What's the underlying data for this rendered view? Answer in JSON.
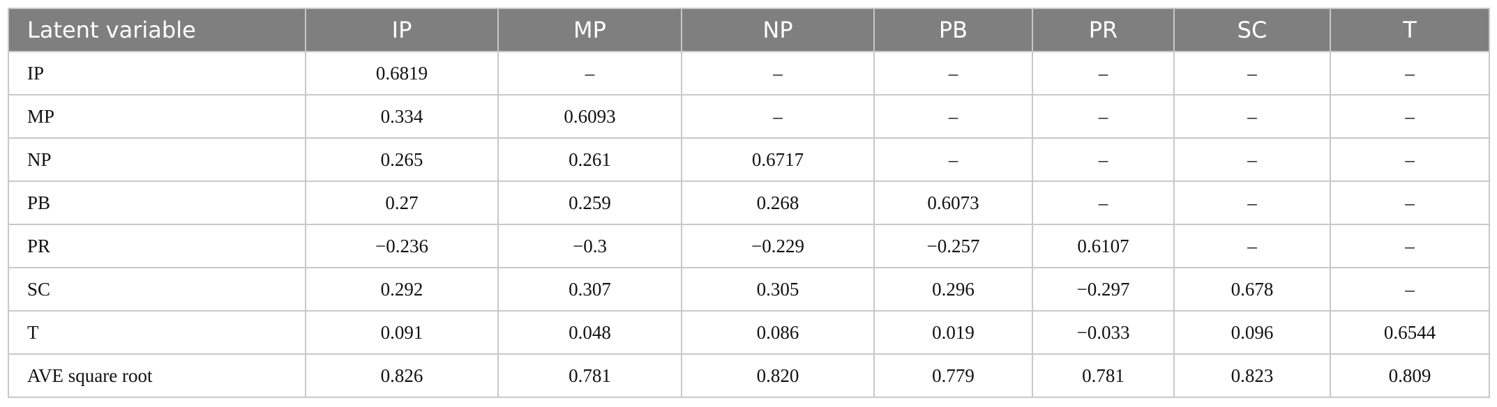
{
  "table": {
    "header": [
      "Latent variable",
      "IP",
      "MP",
      "NP",
      "PB",
      "PR",
      "SC",
      "T"
    ],
    "rows": [
      [
        "IP",
        "0.6819",
        "–",
        "–",
        "–",
        "–",
        "–",
        "–"
      ],
      [
        "MP",
        "0.334",
        "0.6093",
        "–",
        "–",
        "–",
        "–",
        "–"
      ],
      [
        "NP",
        "0.265",
        "0.261",
        "0.6717",
        "–",
        "–",
        "–",
        "–"
      ],
      [
        "PB",
        "0.27",
        "0.259",
        "0.268",
        "0.6073",
        "–",
        "–",
        "–"
      ],
      [
        "PR",
        "−0.236",
        "−0.3",
        "−0.229",
        "−0.257",
        "0.6107",
        "–",
        "–"
      ],
      [
        "SC",
        "0.292",
        "0.307",
        "0.305",
        "0.296",
        "−0.297",
        "0.678",
        "–"
      ],
      [
        "T",
        "0.091",
        "0.048",
        "0.086",
        "0.019",
        "−0.033",
        "0.096",
        "0.6544"
      ],
      [
        "AVE square root",
        "0.826",
        "0.781",
        "0.820",
        "0.779",
        "0.781",
        "0.823",
        "0.809"
      ]
    ]
  }
}
